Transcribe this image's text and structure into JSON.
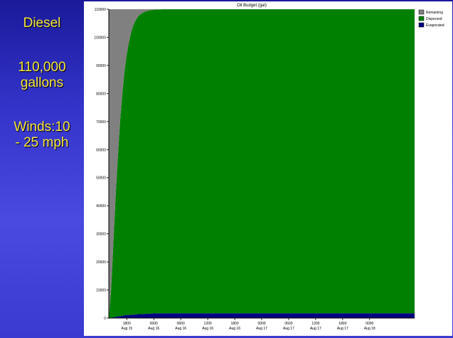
{
  "sidebar": {
    "fuel": "Diesel",
    "volume_line1": "110,000",
    "volume_line2": "gallons",
    "winds_line1": "Winds:10",
    "winds_line2": "- 25 mph"
  },
  "colors": {
    "remaining": "#808080",
    "dispersed": "#008000",
    "evaporated": "#000080"
  },
  "chart_data": {
    "type": "area",
    "stacked": true,
    "title": "Oil Budget (gal)",
    "xlabel": "",
    "ylabel": "",
    "ylim": [
      0,
      110000
    ],
    "y_ticks": [
      0,
      10000,
      20000,
      30000,
      40000,
      50000,
      60000,
      70000,
      80000,
      90000,
      100000,
      110000
    ],
    "y_tick_labels": [
      "0",
      "10000",
      "20000",
      "30000",
      "40000",
      "50000",
      "60000",
      "70000",
      "80000",
      "90000",
      "100000",
      "110000"
    ],
    "xlim_hours": [
      14,
      82
    ],
    "x_ticks": [
      {
        "hour": 18,
        "time": "1800",
        "date": "Aug 15"
      },
      {
        "hour": 24,
        "time": "0000",
        "date": "Aug 16"
      },
      {
        "hour": 30,
        "time": "0600",
        "date": "Aug 16"
      },
      {
        "hour": 36,
        "time": "1200",
        "date": "Aug 16"
      },
      {
        "hour": 42,
        "time": "1800",
        "date": "Aug 16"
      },
      {
        "hour": 48,
        "time": "0000",
        "date": "Aug 17"
      },
      {
        "hour": 54,
        "time": "0600",
        "date": "Aug 17"
      },
      {
        "hour": 60,
        "time": "1200",
        "date": "Aug 17"
      },
      {
        "hour": 66,
        "time": "1800",
        "date": "Aug 17"
      },
      {
        "hour": 72,
        "time": "0000",
        "date": "Aug 18"
      }
    ],
    "x_hours": [
      14,
      14.5,
      15,
      15.5,
      16,
      16.5,
      17,
      17.5,
      18,
      18.5,
      19,
      19.5,
      20,
      20.5,
      21,
      22,
      23,
      24,
      26,
      30,
      82
    ],
    "series": [
      {
        "name": "Remaining",
        "values": [
          110000,
          100000,
          84000,
          67000,
          53000,
          40000,
          30000,
          22000,
          16000,
          11500,
          8000,
          5500,
          3800,
          2600,
          1800,
          900,
          400,
          150,
          0,
          0,
          0
        ]
      },
      {
        "name": "Dispersed",
        "values": [
          0,
          9900,
          25700,
          42600,
          56400,
          69300,
          79200,
          87000,
          93000,
          97400,
          100800,
          103300,
          104900,
          106000,
          106800,
          107600,
          108000,
          108200,
          108300,
          108300,
          108300
        ]
      },
      {
        "name": "Evaporated",
        "values": [
          0,
          100,
          300,
          400,
          600,
          700,
          800,
          1000,
          1000,
          1100,
          1200,
          1200,
          1300,
          1400,
          1400,
          1500,
          1600,
          1650,
          1700,
          1700,
          1700
        ]
      }
    ],
    "legend": [
      "Remaining",
      "Dispersed",
      "Evaporated"
    ],
    "legend_position": "top-right",
    "grid": false
  }
}
